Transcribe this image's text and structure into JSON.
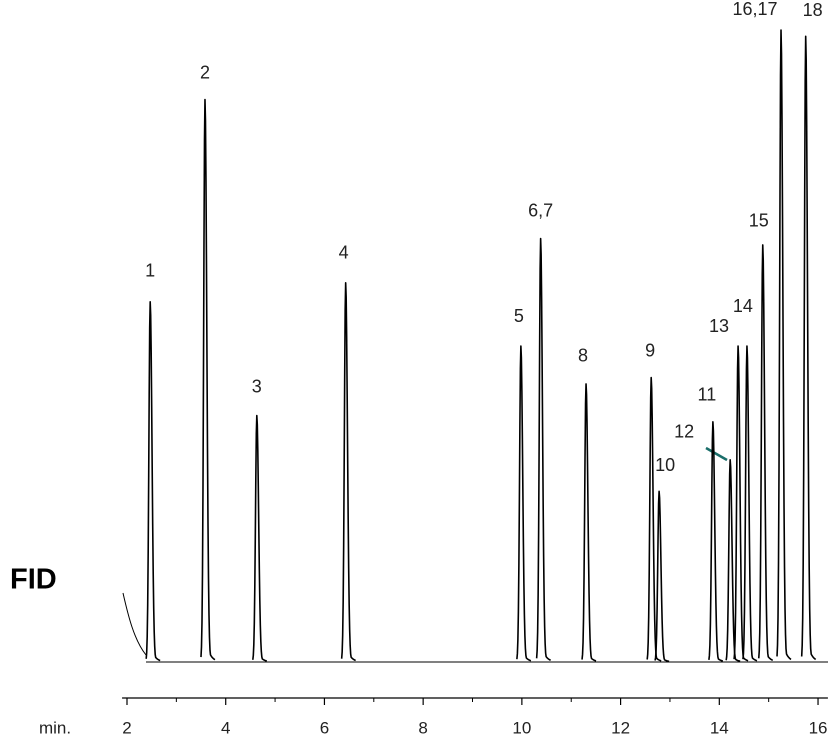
{
  "chart_data": {
    "type": "chromatogram",
    "detector": "FID",
    "x_label": "min.",
    "xlim": [
      1.9,
      16.2
    ],
    "xticks": [
      2,
      4,
      6,
      8,
      10,
      12,
      14,
      16
    ],
    "minor_xticks": [
      3,
      5,
      7,
      9,
      11,
      13,
      15
    ],
    "ylim": [
      0,
      100
    ],
    "color": "#000000",
    "peaks": {
      "labels": [
        "1",
        "2",
        "3",
        "4",
        "5",
        "6,7",
        "8",
        "9",
        "10",
        "11",
        "12",
        "13",
        "14",
        "15",
        "16,17",
        "18"
      ],
      "x": [
        2.47,
        3.58,
        4.63,
        6.43,
        9.98,
        10.38,
        11.3,
        12.62,
        12.78,
        13.87,
        14.22,
        14.38,
        14.56,
        14.88,
        15.25,
        15.75
      ],
      "heights": [
        57,
        89,
        39,
        60,
        50,
        67,
        44,
        45,
        27,
        38,
        32,
        50,
        50,
        66,
        100,
        99
      ]
    }
  }
}
